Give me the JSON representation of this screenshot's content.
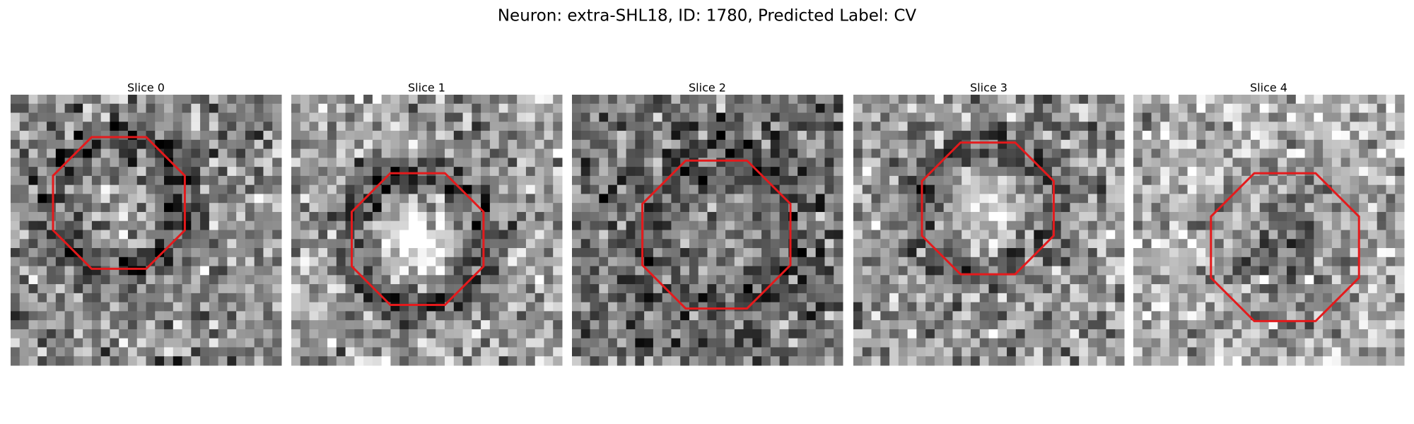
{
  "title": "Neuron: extra-SHL18, ID: 1780, Predicted Label: CV",
  "panels": [
    {
      "title": "Slice 0"
    },
    {
      "title": "Slice 1"
    },
    {
      "title": "Slice 2"
    },
    {
      "title": "Slice 3"
    },
    {
      "title": "Slice 4"
    }
  ]
}
